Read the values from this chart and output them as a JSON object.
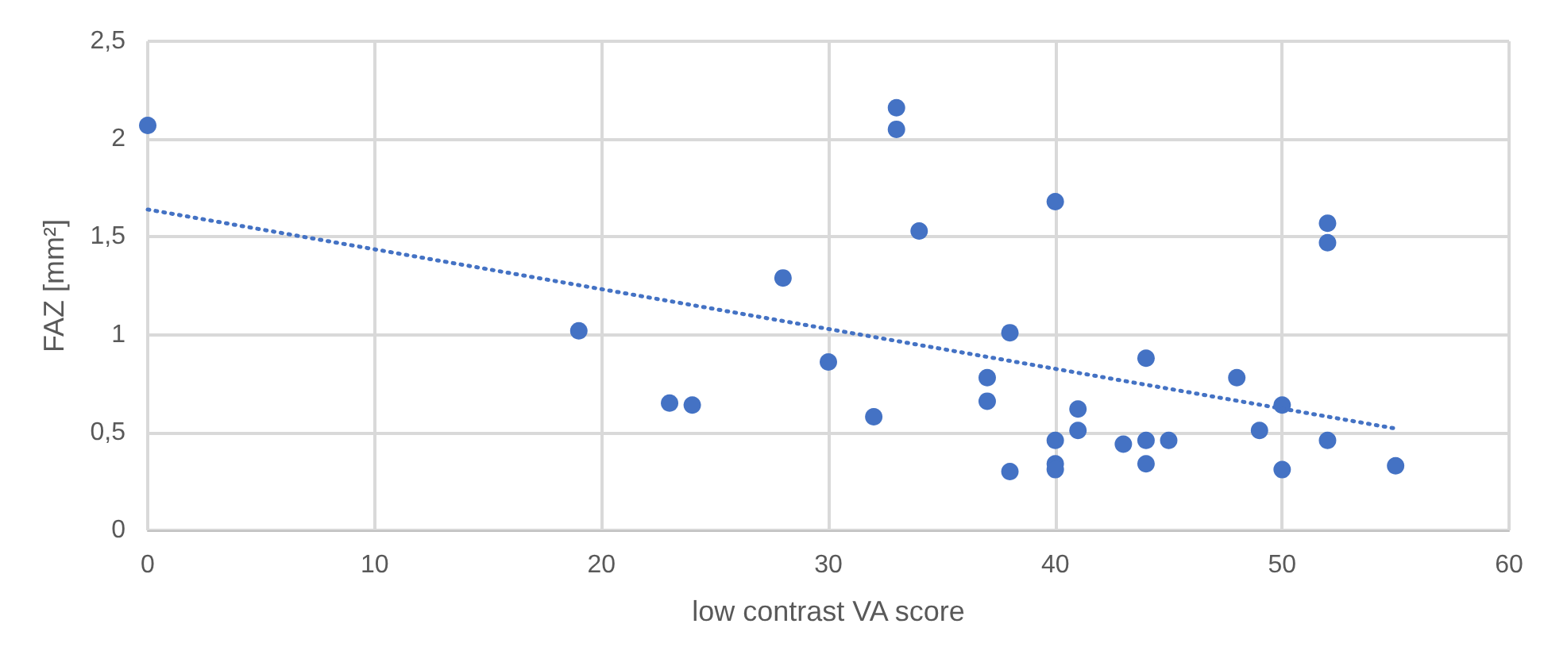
{
  "chart_data": {
    "type": "scatter",
    "xlabel": "low contrast VA score",
    "ylabel": "FAZ [mm²]",
    "xlim": [
      0,
      60
    ],
    "xticks": [
      0,
      10,
      20,
      30,
      40,
      50,
      60
    ],
    "ylim": [
      0,
      2.5
    ],
    "yticks": [
      0,
      {
        "value": 0.5,
        "label": "0,5"
      },
      1,
      {
        "value": 1.5,
        "label": "1,5"
      },
      2,
      {
        "value": 2.5,
        "label": "2,5"
      }
    ],
    "grid": true,
    "marker": "circle",
    "series": [
      {
        "color": "#4472c4",
        "x": [
          0,
          19,
          23,
          24,
          28,
          30,
          32,
          33,
          33,
          34,
          37,
          37,
          38,
          38,
          40,
          40,
          40,
          40,
          41,
          41,
          43,
          44,
          44,
          44,
          45,
          48,
          49,
          50,
          50,
          52,
          52,
          52,
          55
        ],
        "values": [
          2.07,
          1.02,
          0.65,
          0.64,
          1.29,
          0.86,
          0.58,
          2.16,
          2.05,
          1.53,
          0.78,
          0.66,
          1.01,
          0.3,
          1.68,
          0.46,
          0.34,
          0.31,
          0.62,
          0.51,
          0.44,
          0.88,
          0.46,
          0.34,
          0.46,
          0.78,
          0.51,
          0.64,
          0.31,
          1.57,
          1.47,
          0.46,
          0.33
        ]
      },
      {
        "type": "line",
        "color": "#4472c4",
        "line_style": "dotted",
        "marker": "none",
        "x": [
          0,
          55
        ],
        "values": [
          1.64,
          0.52
        ]
      }
    ]
  }
}
